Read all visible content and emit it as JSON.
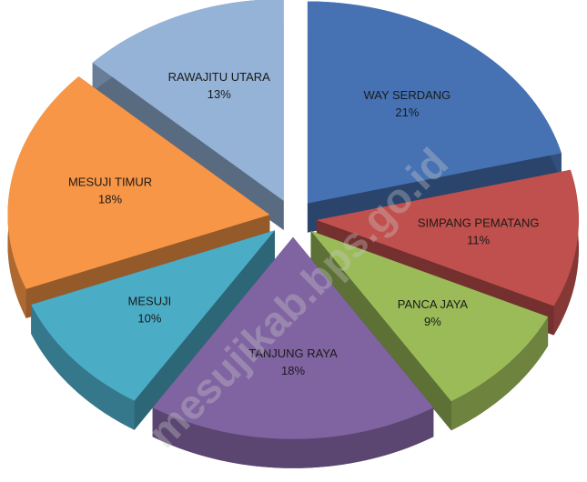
{
  "chart_data": {
    "type": "pie",
    "categories": [
      "WAY SERDANG",
      "SIMPANG PEMATANG",
      "PANCA JAYA",
      "TANJUNG RAYA",
      "MESUJI",
      "MESUJI TIMUR",
      "RAWAJITU UTARA"
    ],
    "values": [
      21,
      11,
      9,
      18,
      10,
      18,
      13
    ],
    "value_labels": [
      "21%",
      "11%",
      "9%",
      "18%",
      "10%",
      "18%",
      "13%"
    ],
    "colors": [
      "#4672b4",
      "#c0504d",
      "#9bbb59",
      "#8064a2",
      "#4bacc6",
      "#f79646",
      "#95b3d7"
    ],
    "annotations": [
      "mesujikab.bps.go.id"
    ]
  }
}
